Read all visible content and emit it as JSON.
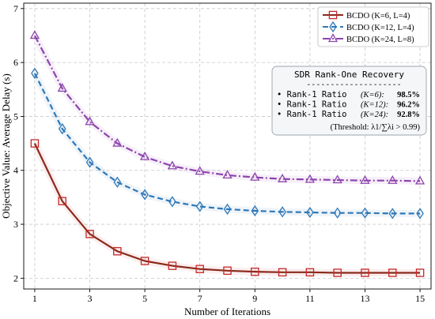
{
  "chart_data": {
    "type": "line",
    "xlabel": "Number of Iterations",
    "ylabel": "Objective Value: Average Delay (s)",
    "xlim": [
      0.6,
      15.4
    ],
    "ylim": [
      1.8,
      7.1
    ],
    "xticks": [
      1,
      3,
      5,
      7,
      9,
      11,
      13,
      15
    ],
    "yticks": [
      2,
      3,
      4,
      5,
      6,
      7
    ],
    "xtick_labels": [
      "1",
      "3",
      "5",
      "7",
      "9",
      "11",
      "13",
      "15"
    ],
    "ytick_labels": [
      "2",
      "3",
      "4",
      "5",
      "6",
      "7"
    ],
    "grid": true,
    "legend_position": "top-right",
    "x": [
      1,
      2,
      3,
      4,
      5,
      6,
      7,
      8,
      9,
      10,
      11,
      12,
      13,
      14,
      15
    ],
    "series": [
      {
        "name": "BCDO (K=6, L=4)",
        "color": "#c62828",
        "line_color": "#8b2a1c",
        "marker": "square",
        "dash": "solid",
        "values": [
          4.5,
          3.43,
          2.82,
          2.5,
          2.32,
          2.23,
          2.17,
          2.14,
          2.12,
          2.11,
          2.11,
          2.1,
          2.1,
          2.1,
          2.1
        ]
      },
      {
        "name": "BCDO (K=12, L=4)",
        "color": "#2e78b7",
        "line_color": "#2e78b7",
        "marker": "diamond",
        "dash": "dashed",
        "values": [
          5.8,
          4.77,
          4.15,
          3.78,
          3.55,
          3.42,
          3.33,
          3.28,
          3.25,
          3.23,
          3.22,
          3.21,
          3.21,
          3.2,
          3.2
        ]
      },
      {
        "name": "BCDO (K=24, L=8)",
        "color": "#8e44ad",
        "line_color": "#8e44ad",
        "marker": "triangle",
        "dash": "dashdot",
        "values": [
          6.5,
          5.52,
          4.9,
          4.5,
          4.25,
          4.08,
          3.98,
          3.91,
          3.87,
          3.84,
          3.83,
          3.82,
          3.81,
          3.81,
          3.8
        ]
      }
    ],
    "info_box": {
      "title": "SDR Rank-One Recovery",
      "separator": "--------------------",
      "lines": [
        {
          "label": "• Rank-1 Ratio",
          "param": "(K=6):",
          "value": "98.5%"
        },
        {
          "label": "• Rank-1 Ratio",
          "param": "(K=12):",
          "value": "96.2%"
        },
        {
          "label": "• Rank-1 Ratio",
          "param": "(K=24):",
          "value": "92.8%"
        }
      ],
      "threshold": "(Threshold: λ1/∑λi > 0.99)"
    }
  }
}
